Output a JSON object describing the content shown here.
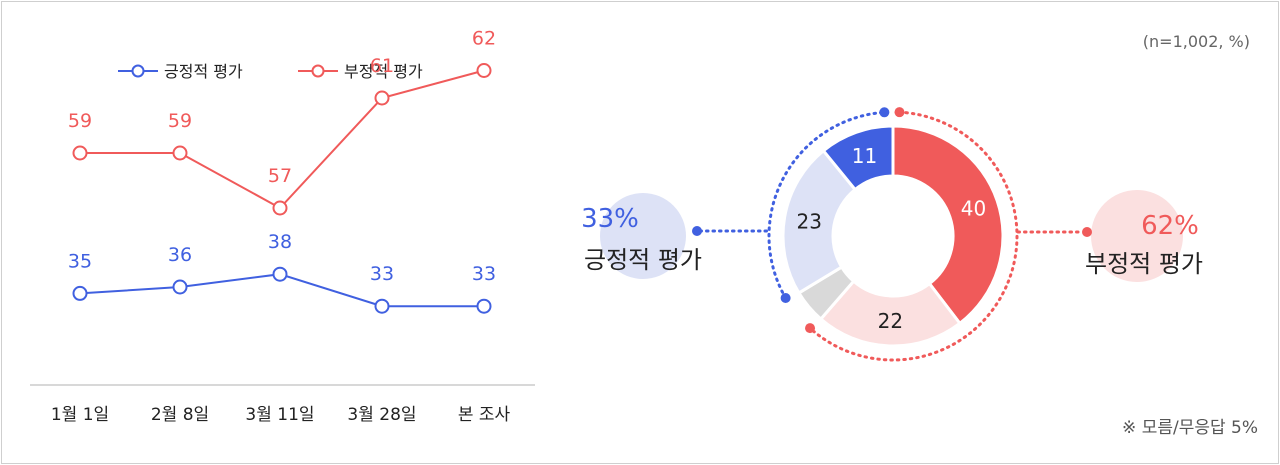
{
  "sample_note": "(n=1,002, %)",
  "footnote": "※ 모름/무응답 5%",
  "colors": {
    "positive": "#4060e0",
    "negative": "#f05a5a",
    "positive_light": "#dde2f6",
    "negative_light": "#fbe0e0",
    "unknown": "#d9d9d9",
    "axis": "#cccccc",
    "text": "#222222"
  },
  "chart_data": [
    {
      "type": "line",
      "categories": [
        "1월 1일",
        "2월 8일",
        "3월 11일",
        "3월 28일",
        "본 조사"
      ],
      "series": [
        {
          "name": "긍정적 평가",
          "color": "#4060e0",
          "values": [
            35,
            36,
            38,
            33,
            33
          ]
        },
        {
          "name": "부정적 평가",
          "color": "#f05a5a",
          "values": [
            59,
            59,
            57,
            61,
            62
          ]
        }
      ],
      "legend_position": "top-left",
      "grid": false
    },
    {
      "type": "pie",
      "subtype": "donut",
      "segments": [
        {
          "label": "40",
          "value": 40,
          "group": "부정적 평가",
          "color": "#f05a5a"
        },
        {
          "label": "22",
          "value": 22,
          "group": "부정적 평가",
          "color": "#fbe0e0"
        },
        {
          "label": "",
          "value": 5,
          "group": "모름/무응답",
          "color": "#d9d9d9"
        },
        {
          "label": "23",
          "value": 23,
          "group": "긍정적 평가",
          "color": "#dde2f6"
        },
        {
          "label": "11",
          "value": 11,
          "group": "긍정적 평가",
          "color": "#4060e0"
        }
      ],
      "summary": [
        {
          "percent": "33%",
          "label": "긍정적 평가",
          "side": "left"
        },
        {
          "percent": "62%",
          "label": "부정적 평가",
          "side": "right"
        }
      ]
    }
  ]
}
